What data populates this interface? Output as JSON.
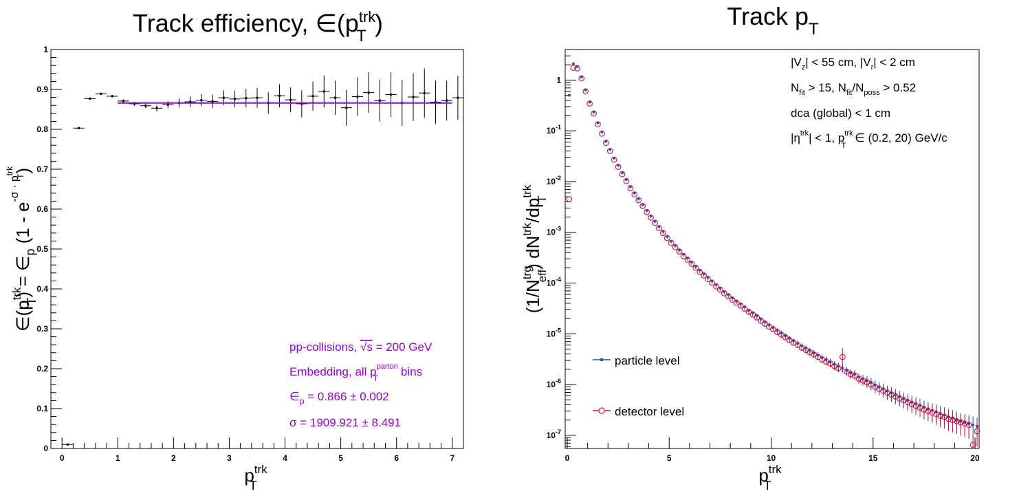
{
  "left_panel": {
    "title_main": "Track efficiency, ∈(p",
    "title_sup": "trk",
    "title_sub": "T",
    "title_end": ")",
    "xlabel_main": "p",
    "xlabel_sup": "trk",
    "xlabel_sub": "T",
    "ylabel_text": "∈(p",
    "ylabel_sup": "trk",
    "ylabel_sub": "T",
    "ylabel_rest": ") = ∈",
    "ylabel_sub2": "p",
    "ylabel_rest2": " (1 - e",
    "ylabel_exp": "-σ · p",
    "ylabel_exp_sup": "trk",
    "ylabel_exp_sub": "T",
    "ylabel_close": ")",
    "ann1_a": "pp-collisions, ",
    "ann1_sqrt": "√s",
    "ann1_b": " = 200 GeV",
    "ann2_a": "Embedding, all p",
    "ann2_sup": "parton",
    "ann2_sub": "T",
    "ann2_b": " bins",
    "ann3_a": "∈",
    "ann3_sub": "p",
    "ann3_b": " = 0.866 ± 0.002",
    "ann4": "σ = 1909.921 ± 8.491",
    "x_ticks": [
      "0",
      "1",
      "2",
      "3",
      "4",
      "5",
      "6",
      "7"
    ],
    "y_ticks": [
      "0",
      "0.1",
      "0.2",
      "0.3",
      "0.4",
      "0.5",
      "0.6",
      "0.7",
      "0.8",
      "0.9",
      "1"
    ],
    "annotation_color": "#9900cc",
    "fit_color": "#9900cc"
  },
  "right_panel": {
    "title_main": "Track p",
    "title_sub": "T",
    "xlabel_main": "p",
    "xlabel_sup": "trk",
    "xlabel_sub": "T",
    "ylabel_a": "(1/N",
    "ylabel_sup1": "trg",
    "ylabel_sub1": "eff",
    "ylabel_b": ") dN",
    "ylabel_sup2": "trk",
    "ylabel_c": "/dp",
    "ylabel_sup3": "trk",
    "ylabel_sub3": "T",
    "cut1_a": "|V",
    "cut1_sub1": "z",
    "cut1_b": "| < 55 cm, |V",
    "cut1_sub2": "r",
    "cut1_c": "| < 2 cm",
    "cut2_a": "N",
    "cut2_sub1": "fit",
    "cut2_b": " > 15, N",
    "cut2_sub2": "fit",
    "cut2_c": "/N",
    "cut2_sub3": "poss",
    "cut2_d": " > 0.52",
    "cut3": "dca (global) < 1 cm",
    "cut4_a": "|η",
    "cut4_sup1": "trk",
    "cut4_b": "| < 1, p",
    "cut4_sup2": "trk",
    "cut4_sub2": "T",
    "cut4_c": " ∈ (0.2, 20) GeV/c",
    "legend": [
      "particle level",
      "detector level"
    ],
    "x_ticks": [
      "0",
      "5",
      "10",
      "15",
      "20"
    ],
    "y_ticks": [
      {
        "base": "10",
        "exp": "-7"
      },
      {
        "base": "10",
        "exp": "-6"
      },
      {
        "base": "10",
        "exp": "-5"
      },
      {
        "base": "10",
        "exp": "-4"
      },
      {
        "base": "10",
        "exp": "-3"
      },
      {
        "base": "10",
        "exp": "-2"
      },
      {
        "base": "10",
        "exp": "-1"
      },
      {
        "base": "1",
        "exp": ""
      }
    ],
    "particle_color": "#1f4fcf",
    "detector_color": "#c0143c"
  },
  "chart_data": [
    {
      "type": "scatter",
      "title": "Track efficiency, ∈(p_T^trk)",
      "xlabel": "p_T^trk",
      "ylabel": "∈(p_T^trk) = ∈_p (1 - e^(-σ · p_T^trk))",
      "xlim": [
        -0.2,
        7.2
      ],
      "ylim": [
        0,
        1
      ],
      "grid": false,
      "series": [
        {
          "x": [
            0.1,
            0.3,
            0.5,
            0.7,
            0.9,
            1.1,
            1.3,
            1.5,
            1.7,
            1.9,
            2.1,
            2.3,
            2.5,
            2.7,
            2.9,
            3.1,
            3.3,
            3.5,
            3.7,
            3.9,
            4.1,
            4.3,
            4.5,
            4.7,
            4.9,
            5.1,
            5.3,
            5.5,
            5.7,
            5.9,
            6.1,
            6.3,
            6.5,
            6.7,
            6.9,
            7.1
          ],
          "y": [
            0.01,
            0.803,
            0.877,
            0.889,
            0.883,
            0.871,
            0.864,
            0.859,
            0.853,
            0.862,
            0.866,
            0.869,
            0.873,
            0.87,
            0.879,
            0.876,
            0.878,
            0.879,
            0.866,
            0.884,
            0.874,
            0.864,
            0.883,
            0.895,
            0.879,
            0.854,
            0.882,
            0.892,
            0.872,
            0.887,
            0.866,
            0.881,
            0.891,
            0.868,
            0.872,
            0.879
          ],
          "yerr": [
            0.0,
            0.002,
            0.003,
            0.003,
            0.003,
            0.004,
            0.005,
            0.006,
            0.008,
            0.009,
            0.011,
            0.013,
            0.015,
            0.017,
            0.019,
            0.021,
            0.023,
            0.025,
            0.027,
            0.029,
            0.031,
            0.034,
            0.037,
            0.04,
            0.043,
            0.045,
            0.048,
            0.051,
            0.053,
            0.056,
            0.058,
            0.06,
            0.062,
            0.055,
            0.05,
            0.055
          ]
        }
      ],
      "fit": {
        "function": "∈_p (1 - e^(-σ · p_T^trk))",
        "epsilon_p": 0.866,
        "sigma": 1909.921,
        "x_range": [
          1.0,
          7.0
        ]
      }
    },
    {
      "type": "scatter",
      "title": "Track p_T",
      "xlabel": "p_T^trk",
      "ylabel": "(1/N_eff^trg) dN^trk/dp_T^trk",
      "xlim": [
        -0.1,
        20.2
      ],
      "ylim": [
        5.5e-08,
        4
      ],
      "yscale": "log",
      "grid": false,
      "legend_placement": "left, lower half",
      "series": [
        {
          "name": "particle level",
          "x": [
            0.1,
            0.3,
            0.5,
            0.7,
            0.9,
            1.1,
            1.3,
            1.5,
            1.7,
            1.9,
            2.1,
            2.3,
            2.5,
            2.7,
            2.9,
            3.1,
            3.3,
            3.5,
            3.7,
            3.9,
            4.1,
            4.3,
            4.5,
            4.7,
            4.9,
            5.1,
            5.3,
            5.5,
            5.7,
            5.9,
            6.1,
            6.3,
            6.5,
            6.7,
            6.9,
            7.1,
            7.3,
            7.5,
            7.7,
            7.9,
            8.1,
            8.3,
            8.5,
            8.7,
            8.9,
            9.1,
            9.3,
            9.5,
            9.7,
            9.9,
            10.1,
            10.3,
            10.5,
            10.7,
            10.9,
            11.1,
            11.3,
            11.5,
            11.7,
            11.9,
            12.1,
            12.3,
            12.5,
            12.7,
            12.9,
            13.1,
            13.3,
            13.5,
            13.7,
            13.9,
            14.1,
            14.3,
            14.5,
            14.7,
            14.9,
            15.1,
            15.3,
            15.5,
            15.7,
            15.9,
            16.1,
            16.3,
            16.5,
            16.7,
            16.9,
            17.1,
            17.3,
            17.5,
            17.7,
            17.9,
            18.1,
            18.3,
            18.5,
            18.7,
            18.9,
            19.1,
            19.3,
            19.5,
            19.7,
            19.9,
            20.1
          ],
          "y": [
            0.5,
            2.1,
            1.85,
            1.15,
            0.64,
            0.37,
            0.235,
            0.145,
            0.095,
            0.062,
            0.043,
            0.029,
            0.021,
            0.015,
            0.011,
            0.008,
            0.006,
            0.0046,
            0.0035,
            0.0027,
            0.0021,
            0.00165,
            0.0013,
            0.00104,
            0.00083,
            0.00067,
            0.00055,
            0.00045,
            0.00037,
            0.00031,
            0.00026,
            0.000215,
            0.00018,
            0.000152,
            0.00013,
            0.00011,
            9.3e-05,
            8e-05,
            6.8e-05,
            5.9e-05,
            5.1e-05,
            4.4e-05,
            3.9e-05,
            3.4e-05,
            2.9e-05,
            2.6e-05,
            2.28e-05,
            1.96e-05,
            1.72e-05,
            1.5e-05,
            1.33e-05,
            1.18e-05,
            1.04e-05,
            9.2e-06,
            8.2e-06,
            7.3e-06,
            6.5e-06,
            5.8e-06,
            5.2e-06,
            4.7e-06,
            4.2e-06,
            3.8e-06,
            3.4e-06,
            3.1e-06,
            2.8e-06,
            2.5e-06,
            2.3e-06,
            2.1e-06,
            1.9e-06,
            1.7e-06,
            1.6e-06,
            1.4e-06,
            1.3e-06,
            1.2e-06,
            1.1e-06,
            9.8e-07,
            9e-07,
            8.2e-07,
            7.5e-07,
            6.9e-07,
            6.3e-07,
            5.8e-07,
            5.3e-07,
            4.9e-07,
            4.5e-07,
            4.2e-07,
            3.9e-07,
            3.6e-07,
            3.3e-07,
            3.1e-07,
            2.9e-07,
            2.7e-07,
            2.5e-07,
            2.3e-07,
            2.2e-07,
            2e-07,
            1.9e-07,
            1.8e-07,
            1.7e-07,
            1.6e-07,
            1.5e-07
          ],
          "yerr_frac": [
            0.01,
            0.01,
            0.01,
            0.01,
            0.01,
            0.01,
            0.01,
            0.01,
            0.01,
            0.01,
            0.01,
            0.01,
            0.01,
            0.01,
            0.01,
            0.02,
            0.02,
            0.02,
            0.02,
            0.02,
            0.02,
            0.02,
            0.03,
            0.03,
            0.03,
            0.03,
            0.03,
            0.04,
            0.04,
            0.04,
            0.04,
            0.05,
            0.05,
            0.05,
            0.05,
            0.06,
            0.06,
            0.06,
            0.06,
            0.07,
            0.07,
            0.07,
            0.08,
            0.08,
            0.08,
            0.08,
            0.09,
            0.09,
            0.09,
            0.1,
            0.1,
            0.1,
            0.11,
            0.11,
            0.11,
            0.12,
            0.12,
            0.12,
            0.13,
            0.13,
            0.14,
            0.14,
            0.15,
            0.15,
            0.16,
            0.16,
            0.17,
            0.18,
            0.18,
            0.19,
            0.2,
            0.2,
            0.21,
            0.22,
            0.23,
            0.24,
            0.25,
            0.26,
            0.27,
            0.28,
            0.29,
            0.3,
            0.31,
            0.32,
            0.33,
            0.34,
            0.35,
            0.36,
            0.37,
            0.38,
            0.39,
            0.4,
            0.41,
            0.42,
            0.43,
            0.44,
            0.45,
            0.46,
            0.47,
            0.48,
            0.5
          ]
        },
        {
          "name": "detector level",
          "x": [
            0.1,
            0.3,
            0.5,
            0.7,
            0.9,
            1.1,
            1.3,
            1.5,
            1.7,
            1.9,
            2.1,
            2.3,
            2.5,
            2.7,
            2.9,
            3.1,
            3.3,
            3.5,
            3.7,
            3.9,
            4.1,
            4.3,
            4.5,
            4.7,
            4.9,
            5.1,
            5.3,
            5.5,
            5.7,
            5.9,
            6.1,
            6.3,
            6.5,
            6.7,
            6.9,
            7.1,
            7.3,
            7.5,
            7.7,
            7.9,
            8.1,
            8.3,
            8.5,
            8.7,
            8.9,
            9.1,
            9.3,
            9.5,
            9.7,
            9.9,
            10.1,
            10.3,
            10.5,
            10.7,
            10.9,
            11.1,
            11.3,
            11.5,
            11.7,
            11.9,
            12.1,
            12.3,
            12.5,
            12.7,
            12.9,
            13.1,
            13.3,
            13.5,
            13.7,
            13.9,
            14.1,
            14.3,
            14.5,
            14.7,
            14.9,
            15.1,
            15.3,
            15.5,
            15.7,
            15.9,
            16.1,
            16.3,
            16.5,
            16.7,
            16.9,
            17.1,
            17.3,
            17.5,
            17.7,
            17.9,
            18.1,
            18.3,
            18.5,
            18.7,
            18.9,
            19.1,
            19.3,
            19.5,
            19.7,
            19.9,
            20.1
          ],
          "y": [
            0.0045,
            1.75,
            1.7,
            1.08,
            0.6,
            0.345,
            0.22,
            0.135,
            0.088,
            0.058,
            0.04,
            0.027,
            0.0195,
            0.014,
            0.0102,
            0.0074,
            0.0056,
            0.0043,
            0.0033,
            0.0025,
            0.00195,
            0.00154,
            0.00121,
            0.00097,
            0.00077,
            0.00062,
            0.00051,
            0.00042,
            0.00034,
            0.00029,
            0.00024,
            0.0002,
            0.000165,
            0.000141,
            0.00012,
            0.000101,
            8.6e-05,
            7.4e-05,
            6.3e-05,
            5.5e-05,
            4.7e-05,
            4.1e-05,
            3.6e-05,
            3.1e-05,
            2.7e-05,
            2.4e-05,
            2.1e-05,
            1.8e-05,
            1.58e-05,
            1.38e-05,
            1.22e-05,
            1.08e-05,
            9.6e-06,
            8.5e-06,
            7.5e-06,
            6.7e-06,
            6e-06,
            5.3e-06,
            4.8e-06,
            4.3e-06,
            3.9e-06,
            3.5e-06,
            3.1e-06,
            2.8e-06,
            2.6e-06,
            2.3e-06,
            2.1e-06,
            3.5e-06,
            1.8e-06,
            1.6e-06,
            1.5e-06,
            1.3e-06,
            1.2e-06,
            1.1e-06,
            1e-06,
            9e-07,
            8.2e-07,
            7.5e-07,
            6.9e-07,
            6.3e-07,
            5.8e-07,
            5.3e-07,
            4.9e-07,
            4.5e-07,
            4.1e-07,
            3.8e-07,
            3.5e-07,
            3.2e-07,
            3e-07,
            2.8e-07,
            2.6e-07,
            2.4e-07,
            2.3e-07,
            2.1e-07,
            2e-07,
            1.9e-07,
            1.8e-07,
            1.7e-07,
            1.6e-07,
            6.5e-08,
            1.2e-07
          ],
          "yerr_frac": [
            0.01,
            0.01,
            0.01,
            0.01,
            0.01,
            0.01,
            0.01,
            0.01,
            0.01,
            0.01,
            0.01,
            0.01,
            0.01,
            0.01,
            0.01,
            0.02,
            0.02,
            0.02,
            0.02,
            0.02,
            0.02,
            0.02,
            0.03,
            0.03,
            0.03,
            0.03,
            0.03,
            0.04,
            0.04,
            0.04,
            0.04,
            0.05,
            0.05,
            0.05,
            0.05,
            0.06,
            0.06,
            0.06,
            0.06,
            0.07,
            0.07,
            0.07,
            0.08,
            0.08,
            0.08,
            0.08,
            0.09,
            0.09,
            0.09,
            0.1,
            0.1,
            0.1,
            0.11,
            0.11,
            0.11,
            0.12,
            0.12,
            0.12,
            0.13,
            0.13,
            0.14,
            0.14,
            0.15,
            0.15,
            0.16,
            0.16,
            0.17,
            0.5,
            0.18,
            0.19,
            0.2,
            0.2,
            0.21,
            0.22,
            0.23,
            0.24,
            0.25,
            0.26,
            0.27,
            0.28,
            0.29,
            0.3,
            0.31,
            0.32,
            0.33,
            0.34,
            0.35,
            0.36,
            0.37,
            0.38,
            0.39,
            0.4,
            0.41,
            0.42,
            0.43,
            0.44,
            0.45,
            0.46,
            0.47,
            0.6,
            0.5
          ]
        }
      ]
    }
  ]
}
